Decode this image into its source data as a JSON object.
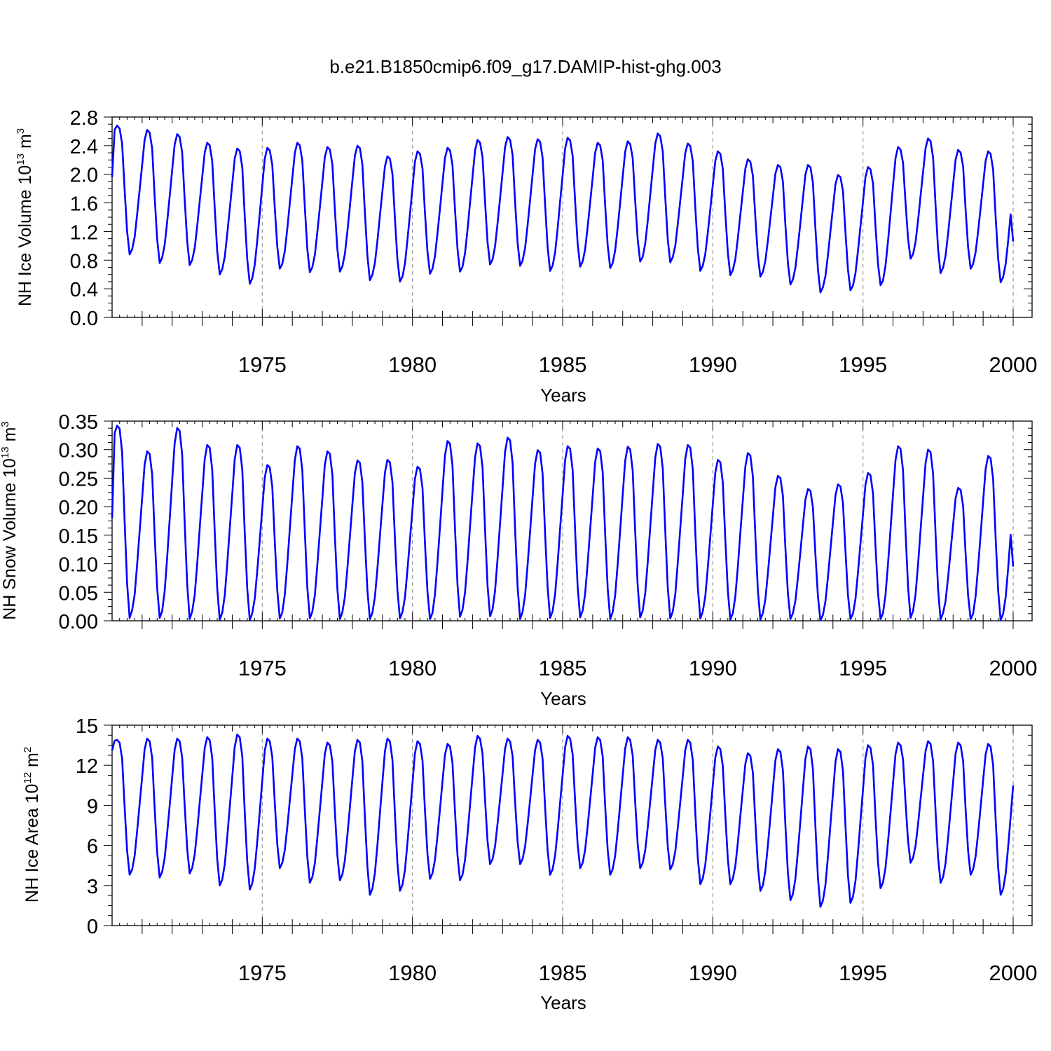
{
  "figure_title": "b.e21.B1850cmip6.f09_g17.DAMIP-hist-ghg.003",
  "colors": {
    "line": "#0000ff",
    "axes": "#000000",
    "grid": "#999999"
  },
  "chart_data": [
    {
      "type": "line",
      "name": "ice-volume",
      "ylabel_main": "NH Ice Volume 10",
      "ylabel_exp": "13",
      "ylabel_unit": " m",
      "ylabel_unit_exp": "3",
      "xlabel": "Years",
      "xlim": [
        1970,
        2000
      ],
      "ylim": [
        0,
        2.8
      ],
      "yticks": [
        "0.0",
        "0.4",
        "0.8",
        "1.2",
        "1.6",
        "2.0",
        "2.4",
        "2.8"
      ],
      "xticks": [
        "1975",
        "1980",
        "1985",
        "1990",
        "1995",
        "2000"
      ],
      "series": [
        {
          "name": "NH Ice Volume",
          "peaks": [
            2.68,
            2.62,
            2.56,
            2.44,
            2.36,
            2.37,
            2.44,
            2.38,
            2.4,
            2.25,
            2.32,
            2.37,
            2.48,
            2.52,
            2.49,
            2.51,
            2.44,
            2.46,
            2.57,
            2.43,
            2.32,
            2.21,
            2.13,
            2.13,
            1.99,
            2.1,
            2.38,
            2.5,
            2.34,
            2.32
          ],
          "troughs": [
            0.88,
            0.76,
            0.73,
            0.6,
            0.47,
            0.68,
            0.63,
            0.64,
            0.52,
            0.5,
            0.61,
            0.64,
            0.74,
            0.72,
            0.65,
            0.71,
            0.69,
            0.78,
            0.77,
            0.65,
            0.59,
            0.57,
            0.46,
            0.35,
            0.38,
            0.45,
            0.82,
            0.62,
            0.68,
            0.49
          ],
          "start": 1.96,
          "end": 1.06
        }
      ]
    },
    {
      "type": "line",
      "name": "snow-volume",
      "ylabel_main": "NH Snow Volume 10",
      "ylabel_exp": "13",
      "ylabel_unit": " m",
      "ylabel_unit_exp": "3",
      "xlabel": "Years",
      "xlim": [
        1970,
        2000
      ],
      "ylim": [
        0,
        0.35
      ],
      "yticks": [
        "0.00",
        "0.05",
        "0.10",
        "0.15",
        "0.20",
        "0.25",
        "0.30",
        "0.35"
      ],
      "xticks": [
        "1975",
        "1980",
        "1985",
        "1990",
        "1995",
        "2000"
      ],
      "series": [
        {
          "name": "NH Snow Volume",
          "peaks": [
            0.342,
            0.297,
            0.338,
            0.308,
            0.308,
            0.273,
            0.306,
            0.297,
            0.281,
            0.282,
            0.27,
            0.315,
            0.311,
            0.321,
            0.299,
            0.306,
            0.302,
            0.305,
            0.31,
            0.308,
            0.282,
            0.294,
            0.254,
            0.231,
            0.239,
            0.259,
            0.306,
            0.3,
            0.233,
            0.289
          ],
          "troughs": [
            0.005,
            0.005,
            0.003,
            0.002,
            0.001,
            0.004,
            0.004,
            0.003,
            0.003,
            0.004,
            0.003,
            0.007,
            0.008,
            0.003,
            0.005,
            0.006,
            0.003,
            0.006,
            0.004,
            0.004,
            0.002,
            0.002,
            0.003,
            0.001,
            0.003,
            0.003,
            0.005,
            0.002,
            0.003,
            0.001
          ],
          "start": 0.18,
          "end": 0.095
        }
      ]
    },
    {
      "type": "line",
      "name": "ice-area",
      "ylabel_main": "NH Ice Area 10",
      "ylabel_exp": "12",
      "ylabel_unit": " m",
      "ylabel_unit_exp": "2",
      "xlabel": "Years",
      "xlim": [
        1970,
        2000
      ],
      "ylim": [
        0,
        15
      ],
      "yticks": [
        "0",
        "3",
        "6",
        "9",
        "12",
        "15"
      ],
      "xticks": [
        "1975",
        "1980",
        "1985",
        "1990",
        "1995",
        "2000"
      ],
      "series": [
        {
          "name": "NH Ice Area",
          "peaks": [
            13.9,
            14.0,
            14.0,
            14.1,
            14.3,
            14.0,
            14.0,
            13.7,
            13.9,
            14.0,
            13.8,
            13.6,
            14.2,
            14.0,
            13.9,
            14.2,
            14.1,
            14.1,
            13.9,
            13.9,
            13.4,
            12.9,
            13.2,
            13.4,
            13.2,
            13.5,
            13.7,
            13.8,
            13.7,
            13.6
          ],
          "troughs": [
            3.8,
            3.6,
            3.9,
            3.0,
            2.7,
            4.3,
            3.2,
            3.4,
            2.3,
            2.6,
            3.5,
            3.4,
            4.6,
            4.6,
            3.8,
            4.3,
            3.8,
            4.3,
            4.2,
            3.1,
            3.1,
            2.6,
            1.9,
            1.4,
            1.7,
            2.8,
            4.7,
            3.2,
            3.8,
            2.3
          ],
          "start": 13.1,
          "end": 10.5
        }
      ]
    }
  ]
}
